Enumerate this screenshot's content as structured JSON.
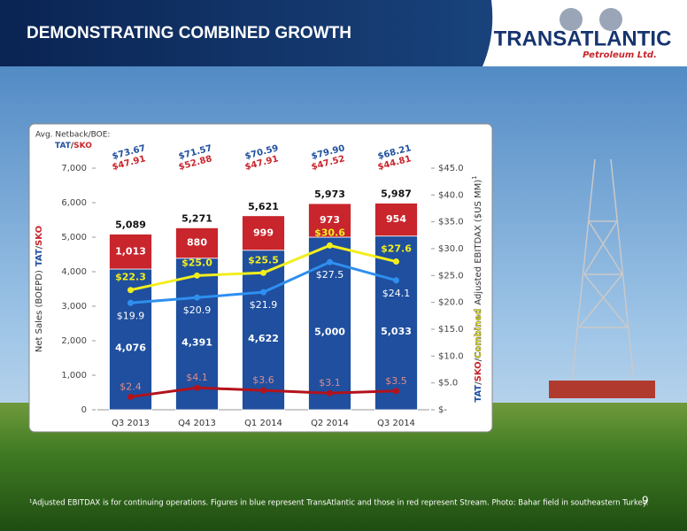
{
  "header": {
    "title": "DEMONSTRATING COMBINED GROWTH"
  },
  "logo": {
    "name": "TRANSATLANTIC",
    "tagline": "Petroleum Ltd."
  },
  "chart_data": {
    "type": "bar",
    "stacked": true,
    "categories": [
      "Q3 2013",
      "Q4 2013",
      "Q1 2014",
      "Q2 2014",
      "Q3 2014"
    ],
    "series": [
      {
        "name": "TAT",
        "color": "#1f4f9e",
        "values": [
          4076,
          4391,
          4622,
          5000,
          5033
        ],
        "value_labels": [
          "4,076",
          "4,391",
          "4,622",
          "5,000",
          "5,033"
        ]
      },
      {
        "name": "SKO",
        "color": "#c8252c",
        "values": [
          1013,
          880,
          999,
          973,
          954
        ],
        "value_labels": [
          "1,013",
          "880",
          "999",
          "973",
          "954"
        ]
      }
    ],
    "totals": {
      "values": [
        5089,
        5271,
        5621,
        5973,
        5987
      ],
      "value_labels": [
        "5,089",
        "5,271",
        "5,621",
        "5,973",
        "5,987"
      ]
    },
    "lines": [
      {
        "name": "TAT",
        "axis": "y2",
        "color": "#2e8ff0",
        "values": [
          19.9,
          20.9,
          21.9,
          27.5,
          24.1
        ],
        "value_labels": [
          "$19.9",
          "$20.9",
          "$21.9",
          "$27.5",
          "$24.1"
        ]
      },
      {
        "name": "Combined",
        "axis": "y2",
        "color": "#f2ee1e",
        "values": [
          22.3,
          25.0,
          25.5,
          30.6,
          27.6
        ],
        "value_labels": [
          "$22.3",
          "$25.0",
          "$25.5",
          "$30.6",
          "$27.6"
        ]
      },
      {
        "name": "SKO",
        "axis": "y2",
        "color": "#b3121c",
        "values": [
          2.4,
          4.1,
          3.6,
          3.1,
          3.5
        ],
        "value_labels": [
          "$2.4",
          "$4.1",
          "$3.6",
          "$3.1",
          "$3.5"
        ]
      }
    ],
    "ylim": [
      0,
      7000
    ],
    "yticks": [
      0,
      {
        "value": 1000,
        "label": "1,000"
      },
      {
        "value": 2000,
        "label": "2,000"
      },
      {
        "value": 3000,
        "label": "3,000"
      },
      {
        "value": 4000,
        "label": "4,000"
      },
      {
        "value": 5000,
        "label": "5,000"
      },
      {
        "value": 6000,
        "label": "6,000"
      },
      {
        "value": 7000,
        "label": "7,000"
      }
    ],
    "y2lim": [
      0,
      45
    ],
    "y2ticks": [
      {
        "value": 0,
        "label": "$-"
      },
      {
        "value": 5,
        "label": "$5.0"
      },
      {
        "value": 10,
        "label": "$10.0"
      },
      {
        "value": 15,
        "label": "$15.0"
      },
      {
        "value": 20,
        "label": "$20.0"
      },
      {
        "value": 25,
        "label": "$25.0"
      },
      {
        "value": 30,
        "label": "$30.0"
      },
      {
        "value": 35,
        "label": "$35.0"
      },
      {
        "value": 40,
        "label": "$40.0"
      },
      {
        "value": 45,
        "label": "$45.0"
      }
    ],
    "separator": "/",
    "y_label": "Net Sales (BOEPD)",
    "y2_label": "Adjusted EBITDAX ($US MM)",
    "y2_label_note": "1",
    "netback": {
      "title": "Avg. Netback/BOE:",
      "tat": {
        "values": [
          73.67,
          71.57,
          70.59,
          79.9,
          68.21
        ],
        "value_labels": [
          "$73.67",
          "$71.57",
          "$70.59",
          "$79.90",
          "$68.21"
        ]
      },
      "sko": {
        "values": [
          47.91,
          52.88,
          47.91,
          47.52,
          44.81
        ],
        "value_labels": [
          "$47.91",
          "$52.88",
          "$47.91",
          "$47.52",
          "$44.81"
        ]
      }
    }
  },
  "footnote": "¹Adjusted EBITDAX is for continuing operations. Figures in blue represent TransAtlantic and those in red represent Stream. Photo: Bahar field in southeastern Turkey.",
  "page_number": "9"
}
